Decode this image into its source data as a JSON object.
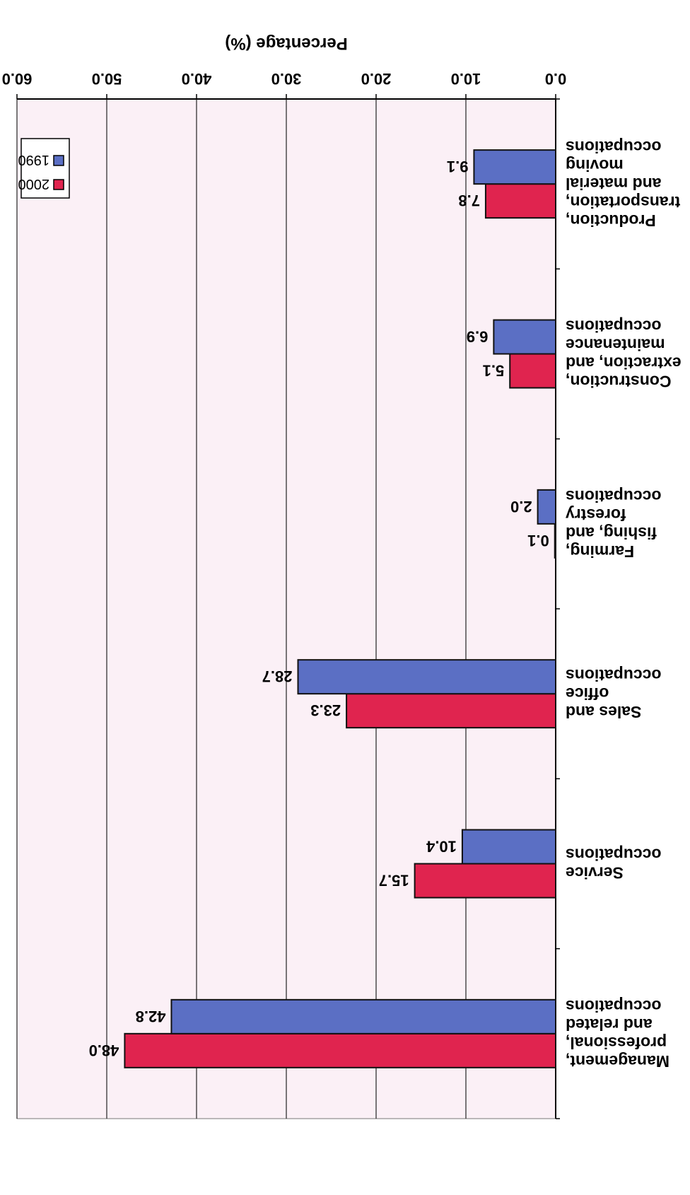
{
  "chart_data": {
    "type": "bar",
    "orientation": "horizontal",
    "categories": [
      [
        "Management,",
        "professional,",
        "and related",
        "occupations"
      ],
      [
        "Service",
        "occupations"
      ],
      [
        "Sales and",
        "office",
        "occupations"
      ],
      [
        "Farming,",
        "fishing, and",
        "forestry",
        "occupations"
      ],
      [
        "Construction,",
        "extraction, and",
        "maintenance",
        "occupations"
      ],
      [
        "Production,",
        "transportation,",
        "and material",
        "moving",
        "occupations"
      ]
    ],
    "series": [
      {
        "name": "1990",
        "color": "#5b6fc4",
        "values": [
          42.8,
          10.4,
          28.7,
          2.0,
          6.9,
          9.1
        ],
        "labels": [
          "42.8",
          "10.4",
          "28.7",
          "2.0",
          "6.9",
          "9.1"
        ]
      },
      {
        "name": "2000",
        "color": "#e0244f",
        "values": [
          48.0,
          15.7,
          23.3,
          0.1,
          5.1,
          7.8
        ],
        "labels": [
          "48.0",
          "15.7",
          "23.3",
          "0.1",
          "5.1",
          "7.8"
        ]
      }
    ],
    "xlabel": "Percentage (%)",
    "xlim": [
      0,
      60
    ],
    "ticks": [
      "0.0",
      "10.0",
      "20.0",
      "30.0",
      "40.0",
      "50.0",
      "60.0"
    ],
    "grid": true,
    "legend": "top-right",
    "rotation": "upside-down",
    "plot_background": "#fbf0f6"
  }
}
